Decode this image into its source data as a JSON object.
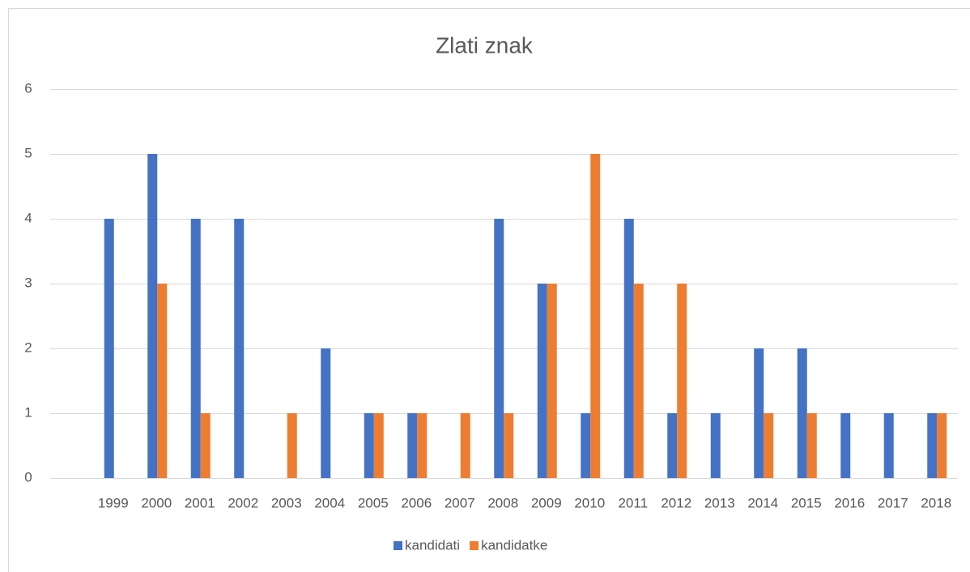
{
  "chart_data": {
    "type": "bar",
    "title": "Zlati znak",
    "categories": [
      "1999",
      "2000",
      "2001",
      "2002",
      "2003",
      "2004",
      "2005",
      "2006",
      "2007",
      "2008",
      "2009",
      "2010",
      "2011",
      "2012",
      "2013",
      "2014",
      "2015",
      "2016",
      "2017",
      "2018"
    ],
    "series": [
      {
        "name": "kandidati",
        "color": "#4472c4",
        "values": [
          4,
          5,
          4,
          4,
          0,
          2,
          1,
          1,
          0,
          4,
          3,
          1,
          4,
          1,
          1,
          2,
          2,
          1,
          1,
          1
        ]
      },
      {
        "name": "kandidatke",
        "color": "#ed7d31",
        "values": [
          0,
          3,
          1,
          0,
          1,
          0,
          1,
          1,
          1,
          1,
          3,
          5,
          3,
          3,
          0,
          1,
          1,
          0,
          0,
          1
        ]
      }
    ],
    "ylim": [
      0,
      6
    ],
    "yticks": [
      0,
      1,
      2,
      3,
      4,
      5,
      6
    ],
    "grid": true,
    "legend": "bottom"
  }
}
